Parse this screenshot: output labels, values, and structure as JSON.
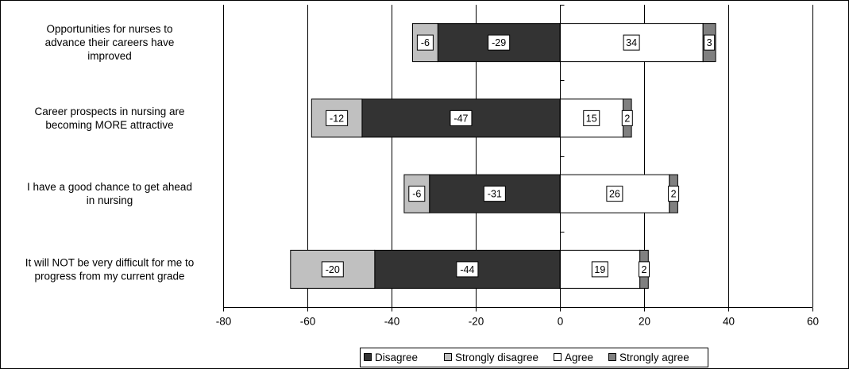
{
  "chart_data": {
    "type": "bar",
    "orientation": "horizontal",
    "stacked": "diverging",
    "categories": [
      [
        "Opportunities for nurses to",
        "advance their careers have",
        "improved"
      ],
      [
        "Career prospects in nursing are",
        "becoming MORE attractive"
      ],
      [
        "I have a good chance to get ahead",
        "in nursing"
      ],
      [
        "It will NOT be very difficult for me to",
        "progress from my current grade"
      ]
    ],
    "series": [
      {
        "name": "Disagree",
        "values": [
          -29,
          -47,
          -31,
          -44
        ],
        "color": "#333333"
      },
      {
        "name": "Strongly disagree",
        "values": [
          -6,
          -12,
          -6,
          -20
        ],
        "color": "#c0c0c0"
      },
      {
        "name": "Agree",
        "values": [
          34,
          15,
          26,
          19
        ],
        "color": "#ffffff"
      },
      {
        "name": "Strongly agree",
        "values": [
          3,
          2,
          2,
          2
        ],
        "color": "#808080"
      }
    ],
    "xlim": [
      -80,
      60
    ],
    "xticks": [
      -80,
      -60,
      -40,
      -20,
      0,
      20,
      40,
      60
    ],
    "grid": true,
    "legend": "bottom"
  }
}
